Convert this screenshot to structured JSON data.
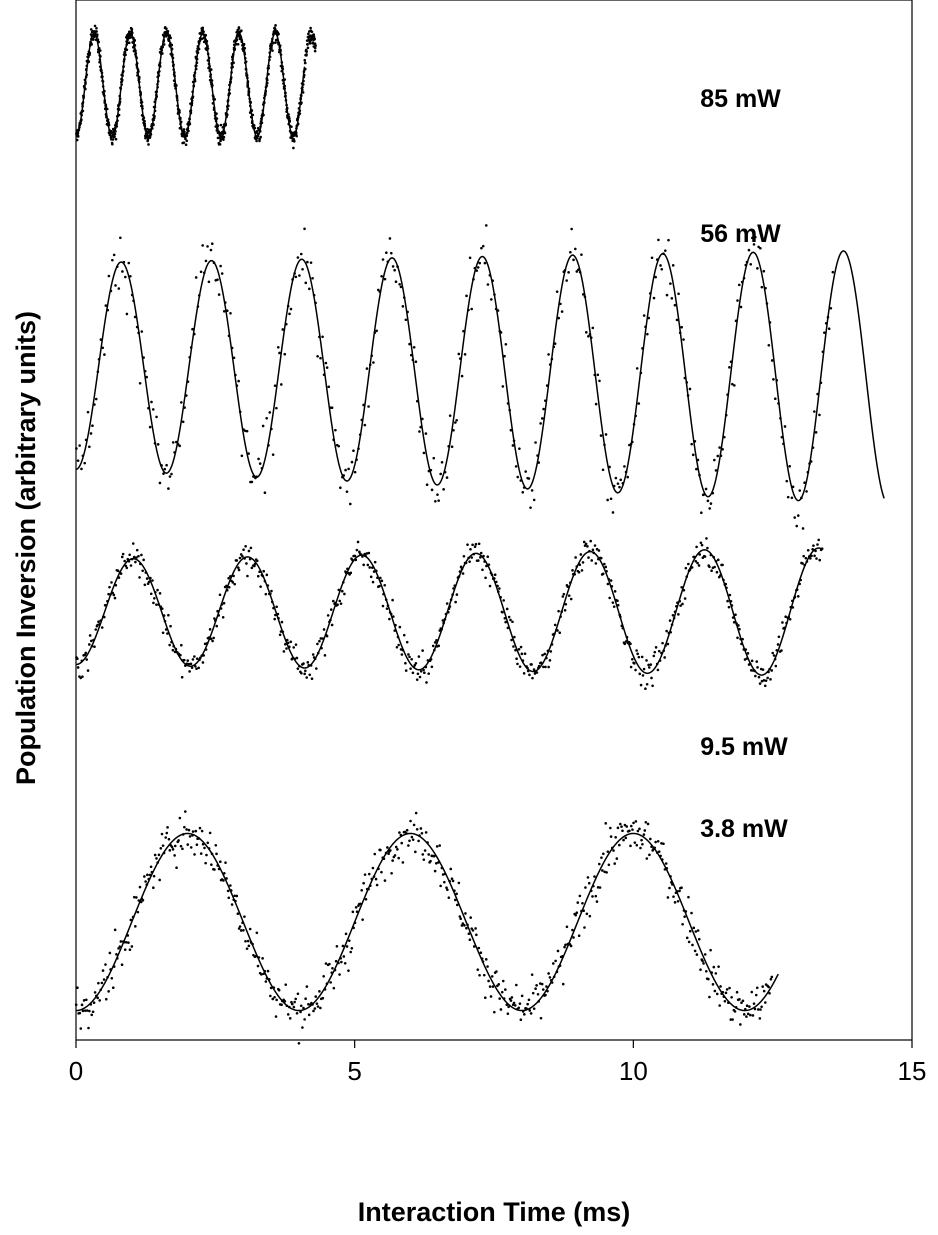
{
  "chart_data": {
    "type": "scatter",
    "title": "",
    "xlabel": "Interaction Time (ms)",
    "ylabel": "Population Inversion (arbitrary units)",
    "xlim": [
      0,
      15
    ],
    "xticks": [
      0,
      5,
      10,
      15
    ],
    "yticks_shown": false,
    "grid": false,
    "legend": "none",
    "fit_line_color": "#000000",
    "point_color": "#000000",
    "series": [
      {
        "name": "85 mW",
        "x_range": [
          0,
          4.3
        ],
        "period_ms": 0.65,
        "phase_ms": 0.31,
        "fit_x_range": [
          0,
          4.1
        ],
        "point_scatter": 0.06,
        "points_per_ms": 230,
        "label_x_ms": 11.2
      },
      {
        "name": "56 mW",
        "x_range": [
          0,
          13.6
        ],
        "period_ms": 1.62,
        "phase_ms": 0.79,
        "fit_x_range": [
          0,
          14.5
        ],
        "fit_amplitude_start": 1.0,
        "fit_amplitude_end": 1.23,
        "fit_midline_start": 0.0,
        "fit_midline_end": -0.3,
        "point_scatter": 0.11,
        "points_per_ms": 34,
        "label_x_ms": 11.2
      },
      {
        "name": "9.5 mW",
        "x_range": [
          0,
          13.4
        ],
        "period_ms": 2.05,
        "phase_ms": 1.0,
        "fit_x_range": [
          0,
          13.4
        ],
        "fit_amplitude_start": 1.0,
        "fit_amplitude_end": 1.22,
        "point_scatter": 0.1,
        "points_per_ms": 52,
        "label_x_ms": 11.2
      },
      {
        "name": "3.8 mW",
        "x_range": [
          0,
          12.5
        ],
        "period_ms": 4.0,
        "phase_ms": 2.0,
        "fit_x_range": [
          0,
          12.6
        ],
        "point_scatter": 0.09,
        "points_per_ms": 50,
        "label_x_ms": 11.2
      }
    ]
  }
}
